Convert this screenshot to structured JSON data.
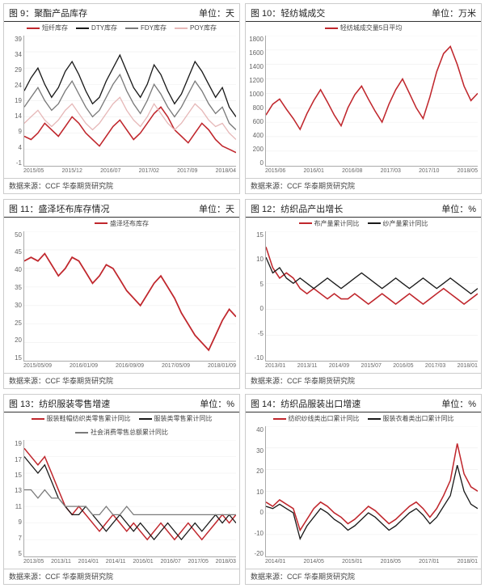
{
  "colors": {
    "red": "#c0272d",
    "black": "#1a1a1a",
    "gray": "#7a7a7a",
    "pink": "#e6b8b8",
    "border": "#cccccc"
  },
  "source_label": "数据来源：CCF 华泰期货研究院",
  "panels": [
    {
      "fig_no": "图 9：",
      "title": "聚酯产品库存",
      "unit": "单位：天",
      "type": "line",
      "legend": [
        {
          "label": "短纤库存",
          "color": "#c0272d"
        },
        {
          "label": "DTY库存",
          "color": "#1a1a1a"
        },
        {
          "label": "FDY库存",
          "color": "#7a7a7a"
        },
        {
          "label": "POY库存",
          "color": "#e6b8b8"
        }
      ],
      "yticks": [
        "-1",
        "4",
        "9",
        "14",
        "19",
        "24",
        "29",
        "34",
        "39"
      ],
      "ylim": [
        -1,
        39
      ],
      "xticks": [
        "2015/05",
        "2015/12",
        "2016/07",
        "2017/02",
        "2017/09",
        "2018/04"
      ],
      "series": [
        {
          "color": "#c0272d",
          "width": 1.4,
          "data": [
            8,
            7,
            9,
            12,
            10,
            8,
            11,
            14,
            12,
            9,
            7,
            5,
            8,
            11,
            13,
            10,
            7,
            9,
            12,
            15,
            17,
            14,
            10,
            8,
            6,
            9,
            12,
            10,
            7,
            5,
            4,
            3
          ]
        },
        {
          "color": "#1a1a1a",
          "width": 1.2,
          "data": [
            22,
            26,
            29,
            24,
            20,
            23,
            28,
            31,
            27,
            22,
            18,
            20,
            25,
            29,
            33,
            28,
            23,
            20,
            24,
            30,
            27,
            22,
            18,
            21,
            26,
            31,
            28,
            24,
            20,
            23,
            17,
            14
          ]
        },
        {
          "color": "#7a7a7a",
          "width": 1.2,
          "data": [
            17,
            20,
            23,
            19,
            16,
            18,
            22,
            25,
            21,
            17,
            14,
            16,
            20,
            24,
            27,
            22,
            18,
            15,
            19,
            24,
            21,
            17,
            14,
            17,
            21,
            25,
            22,
            18,
            15,
            17,
            12,
            10
          ]
        },
        {
          "color": "#e6b8b8",
          "width": 1.2,
          "data": [
            12,
            14,
            16,
            13,
            11,
            13,
            16,
            18,
            15,
            12,
            10,
            12,
            15,
            18,
            20,
            16,
            13,
            11,
            14,
            18,
            15,
            12,
            10,
            12,
            15,
            18,
            16,
            13,
            11,
            12,
            9,
            7
          ]
        }
      ]
    },
    {
      "fig_no": "图 10：",
      "title": "轻纺城成交",
      "unit": "单位：万米",
      "type": "line",
      "legend": [
        {
          "label": "轻纺城成交量5日平均",
          "color": "#c0272d"
        }
      ],
      "yticks": [
        "0",
        "200",
        "400",
        "600",
        "800",
        "1000",
        "1200",
        "1400",
        "1600",
        "1800"
      ],
      "ylim": [
        0,
        1800
      ],
      "xticks": [
        "2015/06",
        "2016/01",
        "2016/08",
        "2017/03",
        "2017/10",
        "2018/05"
      ],
      "series": [
        {
          "color": "#c0272d",
          "width": 1.4,
          "data": [
            700,
            850,
            920,
            780,
            650,
            500,
            720,
            900,
            1050,
            880,
            700,
            550,
            800,
            980,
            1100,
            920,
            750,
            600,
            850,
            1050,
            1200,
            1000,
            800,
            650,
            950,
            1300,
            1550,
            1650,
            1400,
            1100,
            900,
            1000
          ]
        }
      ]
    },
    {
      "fig_no": "图 11：",
      "title": "盛泽坯布库存情况",
      "unit": "单位：天",
      "type": "line",
      "legend": [
        {
          "label": "盛泽坯布库存",
          "color": "#c0272d"
        }
      ],
      "yticks": [
        "15",
        "20",
        "25",
        "30",
        "35",
        "40",
        "45",
        "50"
      ],
      "ylim": [
        15,
        50
      ],
      "xticks": [
        "2015/05/09",
        "2016/01/09",
        "2016/09/09",
        "2017/05/09",
        "2018/01/09"
      ],
      "series": [
        {
          "color": "#c0272d",
          "width": 1.6,
          "data": [
            42,
            43,
            42,
            44,
            41,
            38,
            40,
            43,
            42,
            39,
            36,
            38,
            41,
            40,
            37,
            34,
            32,
            30,
            33,
            36,
            38,
            35,
            32,
            28,
            25,
            22,
            20,
            18,
            22,
            26,
            29,
            27
          ]
        }
      ]
    },
    {
      "fig_no": "图 12：",
      "title": "纺织品产出增长",
      "unit": "单位：%",
      "type": "line",
      "legend": [
        {
          "label": "布产量累计同比",
          "color": "#c0272d"
        },
        {
          "label": "纱产量累计同比",
          "color": "#1a1a1a"
        }
      ],
      "yticks": [
        "-10",
        "-5",
        "0",
        "5",
        "10",
        "15"
      ],
      "ylim": [
        -10,
        15
      ],
      "xticks": [
        "2013/01",
        "2013/11",
        "2014/09",
        "2015/07",
        "2016/05",
        "2017/03",
        "2018/01"
      ],
      "series": [
        {
          "color": "#c0272d",
          "width": 1.4,
          "data": [
            12,
            8,
            6,
            7,
            6,
            4,
            3,
            4,
            3,
            2,
            3,
            2,
            2,
            3,
            2,
            1,
            2,
            3,
            2,
            1,
            2,
            3,
            2,
            1,
            2,
            3,
            4,
            3,
            2,
            1,
            2,
            3
          ]
        },
        {
          "color": "#1a1a1a",
          "width": 1.2,
          "data": [
            10,
            7,
            8,
            6,
            5,
            6,
            5,
            4,
            5,
            6,
            5,
            4,
            5,
            6,
            7,
            6,
            5,
            4,
            5,
            6,
            5,
            4,
            5,
            6,
            5,
            4,
            5,
            6,
            5,
            4,
            3,
            4
          ]
        }
      ]
    },
    {
      "fig_no": "图 13：",
      "title": "纺织服装零售增速",
      "unit": "单位：%",
      "type": "line",
      "legend": [
        {
          "label": "服装鞋帽纺织类零售累计同比",
          "color": "#c0272d"
        },
        {
          "label": "服装类零售累计同比",
          "color": "#1a1a1a"
        },
        {
          "label": "社会消费零售总额累计同比",
          "color": "#7a7a7a"
        }
      ],
      "yticks": [
        "5",
        "7",
        "9",
        "11",
        "13",
        "15",
        "17",
        "19"
      ],
      "ylim": [
        5,
        19
      ],
      "xticks": [
        "2013/05",
        "2013/11",
        "2014/01",
        "2014/11",
        "2016/01",
        "2016/07",
        "2017/05",
        "2018/03"
      ],
      "series": [
        {
          "color": "#c0272d",
          "width": 1.4,
          "data": [
            18,
            17,
            16,
            17,
            15,
            13,
            11,
            10,
            11,
            10,
            9,
            8,
            9,
            10,
            9,
            8,
            9,
            8,
            7,
            8,
            9,
            8,
            7,
            8,
            9,
            8,
            7,
            8,
            9,
            10,
            9,
            10
          ]
        },
        {
          "color": "#1a1a1a",
          "width": 1.2,
          "data": [
            17,
            16,
            15,
            16,
            14,
            12,
            11,
            10,
            10,
            11,
            10,
            9,
            8,
            9,
            10,
            9,
            8,
            9,
            8,
            7,
            8,
            9,
            8,
            7,
            8,
            9,
            8,
            9,
            10,
            9,
            10,
            9
          ]
        },
        {
          "color": "#7a7a7a",
          "width": 1.2,
          "data": [
            13,
            13,
            12,
            13,
            12,
            12,
            11,
            11,
            11,
            11,
            10,
            10,
            11,
            10,
            10,
            11,
            10,
            10,
            10,
            10,
            10,
            10,
            10,
            10,
            10,
            10,
            10,
            10,
            10,
            10,
            10,
            10
          ]
        }
      ]
    },
    {
      "fig_no": "图 14：",
      "title": "纺织品服装出口增速",
      "unit": "单位：%",
      "type": "line",
      "legend": [
        {
          "label": "纺织纱线类出口累计同比",
          "color": "#c0272d"
        },
        {
          "label": "服装衣着类出口累计同比",
          "color": "#1a1a1a"
        }
      ],
      "yticks": [
        "-20",
        "-10",
        "0",
        "10",
        "20",
        "30",
        "40"
      ],
      "ylim": [
        -20,
        40
      ],
      "xticks": [
        "2014/01",
        "2014/05",
        "2015/01",
        "2016/05",
        "2017/01",
        "2018/01"
      ],
      "series": [
        {
          "color": "#c0272d",
          "width": 1.4,
          "data": [
            5,
            3,
            6,
            4,
            2,
            -8,
            -3,
            2,
            5,
            3,
            0,
            -2,
            -5,
            -3,
            0,
            3,
            1,
            -2,
            -5,
            -3,
            0,
            3,
            5,
            2,
            -2,
            2,
            8,
            15,
            32,
            18,
            12,
            10
          ]
        },
        {
          "color": "#1a1a1a",
          "width": 1.2,
          "data": [
            3,
            2,
            4,
            2,
            0,
            -12,
            -6,
            -2,
            2,
            0,
            -3,
            -5,
            -8,
            -6,
            -3,
            0,
            -2,
            -5,
            -8,
            -6,
            -3,
            0,
            2,
            -1,
            -5,
            -2,
            3,
            8,
            22,
            10,
            4,
            2
          ]
        }
      ]
    }
  ]
}
